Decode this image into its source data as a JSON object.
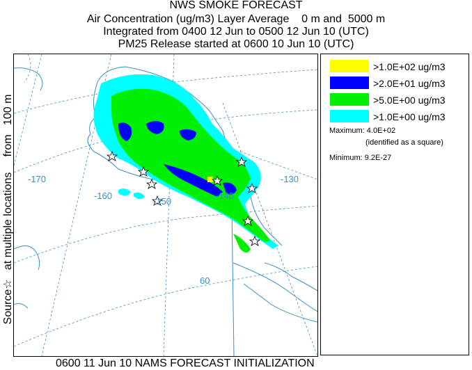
{
  "header": {
    "title": "NWS SMOKE FORECAST",
    "line2": "Air Concentration (ug/m3) Layer Average    0 m and  5000 m",
    "line3": "Integrated from 0400 12 Jun to 0500 12 Jun 10 (UTC)",
    "line4": "PM25 Release started at 0600 10 Jun 10 (UTC)"
  },
  "side_label": "Source☆   at multiple locations     from   100 m",
  "footer": "0600 11 Jun 10 NAMS FORECAST INITIALIZATION",
  "map": {
    "longitude_labels": [
      "-170",
      "-160",
      "-150",
      "-140",
      "-130"
    ],
    "latitude_labels": [
      "60"
    ],
    "source_marker": "star-icon",
    "colors": {
      "background": "#ffffff",
      "graticule": "#3a8fc4",
      "coastline": "#3a8fc4"
    }
  },
  "legend": {
    "items": [
      {
        "label": ">1.0E+02 ug/m3",
        "color": "#ffff00"
      },
      {
        "label": ">2.0E+01 ug/m3",
        "color": "#0000ff"
      },
      {
        "label": ">5.0E+00 ug/m3",
        "color": "#00ee00"
      },
      {
        "label": ">1.0E+00 ug/m3",
        "color": "#00ffff"
      }
    ],
    "maximum": "Maximum: 4.0E+02",
    "maximum_note": "(identified as a square)",
    "minimum": "Minimum: 9.2E-27"
  }
}
